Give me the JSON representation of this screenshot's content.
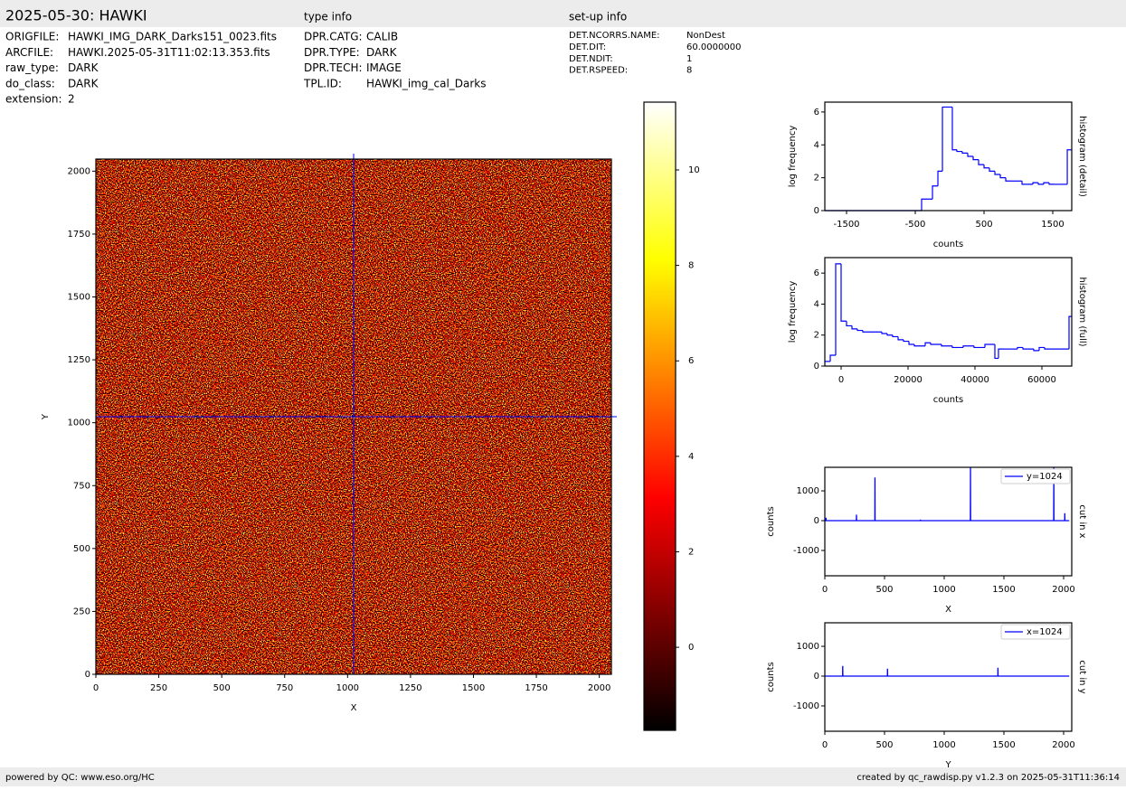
{
  "header": {
    "title": "2025-05-30: HAWKI"
  },
  "file_info": [
    {
      "label": "ORIGFILE:",
      "value": "HAWKI_IMG_DARK_Darks151_0023.fits"
    },
    {
      "label": "ARCFILE:",
      "value": "HAWKI.2025-05-31T11:02:13.353.fits"
    },
    {
      "label": "raw_type:",
      "value": "DARK"
    },
    {
      "label": "do_class:",
      "value": "DARK"
    },
    {
      "label": "extension:",
      "value": 2
    }
  ],
  "type_info": {
    "title": "type info",
    "rows": [
      {
        "label": "DPR.CATG:",
        "value": "CALIB"
      },
      {
        "label": "DPR.TYPE:",
        "value": "DARK"
      },
      {
        "label": "DPR.TECH:",
        "value": "IMAGE"
      },
      {
        "label": "TPL.ID:",
        "value": "HAWKI_img_cal_Darks"
      }
    ]
  },
  "setup_info": {
    "title": "set-up info",
    "rows": [
      {
        "label": "DET.NCORRS.NAME:",
        "value": "NonDest"
      },
      {
        "label": "DET.DIT:",
        "value": "60.0000000"
      },
      {
        "label": "DET.NDIT:",
        "value": 1
      },
      {
        "label": "DET.RSPEED:",
        "value": 8
      }
    ]
  },
  "footer": {
    "left": "powered by QC: www.eso.org/HC",
    "right": "created by qc_rawdisp.py v1.2.3 on 2025-05-31T11:36:14"
  },
  "chart_data": [
    {
      "type": "image",
      "colormap": "hot",
      "xlabel": "X",
      "ylabel": "Y",
      "xlim": [
        0,
        2048
      ],
      "ylim": [
        0,
        2048
      ],
      "xticks": [
        0,
        250,
        500,
        750,
        1000,
        1250,
        1500,
        1750,
        2000
      ],
      "yticks": [
        0,
        250,
        500,
        750,
        1000,
        1250,
        1500,
        1750,
        2000
      ],
      "crosshair_x": 1024,
      "crosshair_y": 1024,
      "crosshair_color": "#0000ff"
    },
    {
      "type": "colorbar",
      "colormap": "hot",
      "ylim": [
        -1.74,
        11.42
      ],
      "yticks": [
        0,
        2,
        4,
        6,
        8,
        10
      ]
    },
    {
      "type": "histogram",
      "xlabel": "counts",
      "ylabel": "log frequency",
      "right_label": "histogram (detail)",
      "color": "#0000ff",
      "xlim": [
        -1816,
        1776
      ],
      "ylim": [
        0,
        6.6
      ],
      "xticks": [
        -1500,
        -500,
        500,
        1500
      ],
      "yticks": [
        0,
        2,
        4,
        6
      ],
      "bins": [
        -1816,
        -408,
        -250,
        -171,
        -105,
        39,
        105,
        184,
        263,
        342,
        421,
        500,
        579,
        658,
        737,
        816,
        895,
        1053,
        1211,
        1290,
        1368,
        1447,
        1526,
        1605,
        1711,
        1776
      ],
      "values": [
        0,
        0.7,
        1.5,
        2.4,
        6.3,
        3.7,
        3.6,
        3.5,
        3.3,
        3.1,
        2.8,
        2.6,
        2.4,
        2.2,
        2.0,
        1.8,
        1.8,
        1.6,
        1.7,
        1.6,
        1.7,
        1.6,
        1.6,
        1.6,
        3.7
      ]
    },
    {
      "type": "histogram",
      "xlabel": "counts",
      "ylabel": "log frequency",
      "right_label": "histogram (full)",
      "color": "#0000ff",
      "xlim": [
        -4865,
        68919
      ],
      "ylim": [
        0,
        7
      ],
      "xticks": [
        0,
        20000,
        40000,
        60000
      ],
      "yticks": [
        0,
        2,
        4,
        6
      ],
      "bins": [
        -4865,
        -3243,
        -1622,
        0,
        1622,
        3243,
        4865,
        6486,
        12162,
        13784,
        15405,
        17027,
        18649,
        20270,
        21892,
        25135,
        26757,
        30000,
        33243,
        36486,
        39730,
        42973,
        45946,
        47027,
        48649,
        52703,
        54324,
        57568,
        59189,
        60811,
        68108,
        68919
      ],
      "values": [
        0.3,
        0.7,
        6.6,
        2.9,
        2.6,
        2.4,
        2.3,
        2.2,
        2.1,
        2.0,
        1.9,
        1.7,
        1.6,
        1.4,
        1.3,
        1.5,
        1.4,
        1.3,
        1.2,
        1.3,
        1.2,
        1.4,
        0.5,
        1.1,
        1.1,
        1.2,
        1.1,
        1.0,
        1.2,
        1.1,
        3.2
      ]
    },
    {
      "type": "line",
      "xlabel": "X",
      "ylabel": "counts",
      "right_label": "cut in x",
      "legend": "upper right",
      "xlim": [
        0,
        2068
      ],
      "ylim": [
        -1850,
        1790
      ],
      "xticks": [
        0,
        500,
        1000,
        1500,
        2000
      ],
      "yticks": [
        -1000,
        0,
        1000
      ],
      "x": [
        0,
        9,
        10,
        11,
        264,
        265,
        266,
        419,
        420,
        421,
        800,
        801,
        802,
        1219,
        1220,
        1221,
        1917,
        1918,
        1919,
        2009,
        2010,
        2011,
        2047
      ],
      "series": [
        {
          "name": "y=1024",
          "color": "#0000ff",
          "values": [
            0,
            0,
            100,
            0,
            0,
            200,
            0,
            0,
            1450,
            0,
            0,
            30,
            0,
            0,
            1800,
            0,
            0,
            1800,
            0,
            0,
            250,
            0,
            0
          ]
        }
      ]
    },
    {
      "type": "line",
      "xlabel": "Y",
      "ylabel": "counts",
      "right_label": "cut in y",
      "legend": "upper right",
      "xlim": [
        0,
        2068
      ],
      "ylim": [
        -1850,
        1790
      ],
      "xticks": [
        0,
        500,
        1000,
        1500,
        2000
      ],
      "yticks": [
        -1000,
        0,
        1000
      ],
      "x": [
        0,
        149,
        150,
        151,
        524,
        525,
        526,
        1449,
        1450,
        1451,
        2047
      ],
      "series": [
        {
          "name": "x=1024",
          "color": "#0000ff",
          "values": [
            0,
            0,
            340,
            0,
            0,
            250,
            0,
            0,
            280,
            0,
            0
          ]
        }
      ]
    }
  ]
}
